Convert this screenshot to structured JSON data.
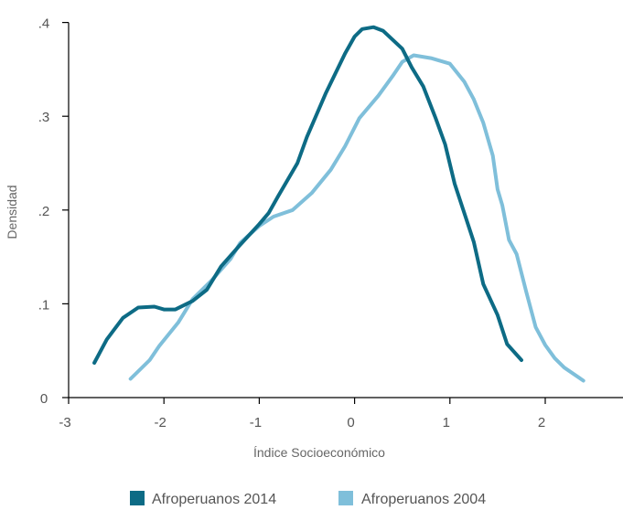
{
  "chart_data": {
    "type": "line",
    "xlabel": "Índice Socioeconómico",
    "ylabel": "Densidad",
    "xlim": [
      -3,
      2.4
    ],
    "ylim": [
      0,
      0.4
    ],
    "x_ticks": [
      {
        "value": -3,
        "label": "-3"
      },
      {
        "value": -2,
        "label": "-2"
      },
      {
        "value": -1,
        "label": "-1"
      },
      {
        "value": 0,
        "label": "0"
      },
      {
        "value": 1,
        "label": "1"
      },
      {
        "value": 2,
        "label": "2"
      }
    ],
    "y_ticks": [
      {
        "value": 0,
        "label": "0"
      },
      {
        "value": 0.1,
        "label": ".1"
      },
      {
        "value": 0.2,
        "label": ".2"
      },
      {
        "value": 0.3,
        "label": ".3"
      },
      {
        "value": 0.4,
        "label": ".4"
      }
    ],
    "grid": false,
    "legend_position": "bottom",
    "series": [
      {
        "name": "Afroperuanos 2014",
        "color": "#0d6b85",
        "points": [
          [
            -2.73,
            0.037
          ],
          [
            -2.6,
            0.062
          ],
          [
            -2.43,
            0.085
          ],
          [
            -2.27,
            0.096
          ],
          [
            -2.1,
            0.097
          ],
          [
            -2.0,
            0.094
          ],
          [
            -1.88,
            0.094
          ],
          [
            -1.7,
            0.103
          ],
          [
            -1.55,
            0.115
          ],
          [
            -1.4,
            0.14
          ],
          [
            -1.2,
            0.163
          ],
          [
            -1.0,
            0.185
          ],
          [
            -0.9,
            0.197
          ],
          [
            -0.8,
            0.215
          ],
          [
            -0.6,
            0.25
          ],
          [
            -0.5,
            0.278
          ],
          [
            -0.3,
            0.325
          ],
          [
            -0.1,
            0.367
          ],
          [
            0.0,
            0.385
          ],
          [
            0.08,
            0.393
          ],
          [
            0.2,
            0.395
          ],
          [
            0.3,
            0.391
          ],
          [
            0.5,
            0.372
          ],
          [
            0.6,
            0.352
          ],
          [
            0.72,
            0.332
          ],
          [
            0.85,
            0.298
          ],
          [
            0.95,
            0.27
          ],
          [
            1.05,
            0.228
          ],
          [
            1.25,
            0.166
          ],
          [
            1.35,
            0.121
          ],
          [
            1.5,
            0.088
          ],
          [
            1.6,
            0.057
          ],
          [
            1.75,
            0.04
          ]
        ]
      },
      {
        "name": "Afroperuanos 2004",
        "color": "#7fbfda",
        "points": [
          [
            -2.35,
            0.02
          ],
          [
            -2.15,
            0.04
          ],
          [
            -2.05,
            0.055
          ],
          [
            -1.85,
            0.08
          ],
          [
            -1.7,
            0.105
          ],
          [
            -1.5,
            0.125
          ],
          [
            -1.3,
            0.148
          ],
          [
            -1.2,
            0.165
          ],
          [
            -1.0,
            0.183
          ],
          [
            -0.85,
            0.193
          ],
          [
            -0.65,
            0.2
          ],
          [
            -0.45,
            0.218
          ],
          [
            -0.25,
            0.243
          ],
          [
            -0.1,
            0.268
          ],
          [
            0.05,
            0.298
          ],
          [
            0.25,
            0.322
          ],
          [
            0.4,
            0.343
          ],
          [
            0.5,
            0.358
          ],
          [
            0.62,
            0.365
          ],
          [
            0.8,
            0.362
          ],
          [
            1.0,
            0.356
          ],
          [
            1.15,
            0.337
          ],
          [
            1.25,
            0.318
          ],
          [
            1.35,
            0.293
          ],
          [
            1.45,
            0.258
          ],
          [
            1.5,
            0.222
          ],
          [
            1.55,
            0.205
          ],
          [
            1.62,
            0.168
          ],
          [
            1.7,
            0.153
          ],
          [
            1.8,
            0.113
          ],
          [
            1.9,
            0.075
          ],
          [
            2.0,
            0.056
          ],
          [
            2.1,
            0.042
          ],
          [
            2.2,
            0.032
          ],
          [
            2.4,
            0.018
          ]
        ]
      }
    ]
  }
}
